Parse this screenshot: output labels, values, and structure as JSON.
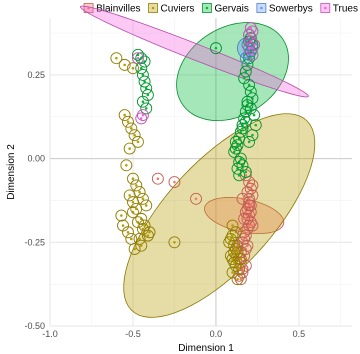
{
  "chart_data": {
    "type": "scatter",
    "xlabel": "Dimension 1",
    "ylabel": "Dimension 2",
    "xlim": [
      -1.0,
      0.82
    ],
    "ylim": [
      -0.5,
      0.42
    ],
    "x_ticks": [
      -1.0,
      -0.5,
      0.0,
      0.5
    ],
    "y_ticks": [
      -0.5,
      -0.25,
      0.0,
      0.25
    ],
    "x_tick_labels": [
      "-1.0",
      "-0.5",
      "0.0",
      "0.5"
    ],
    "y_tick_labels": [
      "-0.50",
      "-0.25",
      "0.00",
      "0.25"
    ],
    "grid": true,
    "legend_position": "top",
    "series": [
      {
        "name": "Blainvilles",
        "color": "#F8766D",
        "ellipse": {
          "cx": 0.17,
          "cy": -0.17,
          "rx": 0.05,
          "ry": 0.24,
          "angle_deg": -85
        },
        "x": [
          -0.35,
          -0.25,
          -0.12,
          0.18,
          0.2,
          0.21,
          0.22,
          0.2,
          0.19,
          0.2,
          0.21,
          0.19,
          0.18,
          0.22,
          0.21,
          0.2,
          0.19,
          0.17,
          0.16,
          0.18,
          0.17,
          0.15,
          0.16,
          0.14,
          0.15,
          0.13,
          0.14,
          0.17,
          0.19,
          0.2,
          0.22,
          0.18,
          0.16,
          0.15,
          0.21,
          0.2,
          0.18,
          0.17,
          0.16,
          0.19
        ],
        "y": [
          -0.06,
          -0.07,
          -0.12,
          -0.05,
          -0.07,
          -0.09,
          -0.11,
          -0.13,
          -0.15,
          -0.17,
          -0.19,
          -0.21,
          -0.23,
          -0.2,
          -0.16,
          -0.14,
          -0.18,
          -0.22,
          -0.25,
          -0.27,
          -0.29,
          -0.31,
          -0.33,
          -0.35,
          -0.28,
          -0.26,
          -0.3,
          -0.24,
          -0.1,
          -0.12,
          -0.08,
          -0.32,
          -0.34,
          -0.36,
          -0.14,
          -0.2,
          -0.16,
          -0.18,
          -0.12,
          -0.26
        ]
      },
      {
        "name": "Cuviers",
        "color": "#B79F00",
        "ellipse": {
          "cx": 0.02,
          "cy": -0.17,
          "rx": 0.62,
          "ry": 0.2,
          "angle_deg": -23
        },
        "x": [
          -0.6,
          -0.55,
          -0.5,
          -0.55,
          -0.53,
          -0.51,
          -0.49,
          -0.47,
          -0.52,
          -0.54,
          -0.5,
          -0.48,
          -0.46,
          -0.44,
          -0.42,
          -0.5,
          -0.45,
          -0.43,
          -0.4,
          -0.46,
          -0.48,
          -0.5,
          -0.52,
          -0.47,
          -0.44,
          -0.56,
          -0.53,
          -0.51,
          -0.45,
          -0.41,
          -0.25,
          -0.57,
          -0.49,
          0.1,
          0.12,
          0.09,
          0.11,
          0.13,
          0.1,
          0.12,
          0.14,
          0.11,
          0.09,
          0.12,
          0.1,
          0.13,
          0.08,
          0.15,
          0.11,
          0.1
        ],
        "y": [
          0.3,
          0.28,
          0.27,
          0.13,
          0.11,
          0.09,
          0.07,
          0.05,
          0.03,
          -0.02,
          -0.06,
          -0.08,
          -0.1,
          -0.12,
          -0.14,
          -0.16,
          -0.18,
          -0.2,
          -0.22,
          -0.24,
          -0.15,
          -0.13,
          -0.11,
          -0.19,
          -0.21,
          -0.2,
          -0.22,
          -0.24,
          -0.26,
          -0.23,
          -0.25,
          -0.17,
          -0.27,
          -0.2,
          -0.22,
          -0.24,
          -0.26,
          -0.28,
          -0.3,
          -0.32,
          -0.33,
          -0.31,
          -0.29,
          -0.27,
          -0.34,
          -0.36,
          -0.25,
          -0.3,
          -0.28,
          -0.23
        ]
      },
      {
        "name": "Gervais",
        "color": "#00BA38",
        "ellipse": {
          "cx": 0.1,
          "cy": 0.26,
          "rx": 0.34,
          "ry": 0.14,
          "angle_deg": -8
        },
        "x": [
          -0.43,
          -0.45,
          -0.44,
          -0.43,
          -0.42,
          -0.41,
          -0.44,
          -0.42,
          -0.47,
          -0.45,
          0.0,
          0.21,
          0.2,
          0.22,
          0.21,
          0.2,
          0.19,
          0.18,
          0.17,
          0.2,
          0.21,
          0.22,
          0.19,
          0.18,
          0.17,
          0.16,
          0.15,
          0.14,
          0.13,
          0.12,
          0.11,
          0.14,
          0.16,
          0.18,
          0.2,
          0.22,
          0.24,
          0.23,
          0.21,
          0.19,
          0.15,
          0.13,
          0.12,
          0.16,
          0.18,
          0.14
        ],
        "y": [
          0.29,
          0.27,
          0.25,
          0.23,
          0.21,
          0.19,
          0.17,
          0.15,
          0.31,
          0.3,
          0.33,
          0.36,
          0.35,
          0.34,
          0.32,
          0.3,
          0.28,
          0.26,
          0.24,
          0.22,
          0.2,
          0.18,
          0.16,
          0.14,
          0.12,
          0.1,
          0.08,
          0.06,
          0.04,
          0.03,
          0.02,
          -0.01,
          -0.02,
          -0.04,
          0.05,
          0.07,
          0.1,
          0.13,
          0.15,
          0.17,
          0.0,
          -0.03,
          0.05,
          0.09,
          0.11,
          -0.05
        ]
      },
      {
        "name": "Sowerbys",
        "color": "#619CFF",
        "ellipse": {
          "cx": 0.18,
          "cy": 0.33,
          "rx": 0.05,
          "ry": 0.03,
          "angle_deg": 0
        },
        "x": [
          0.2,
          0.21,
          0.19,
          0.22,
          0.2,
          0.18
        ],
        "y": [
          0.37,
          0.35,
          0.34,
          0.33,
          0.31,
          0.3
        ]
      },
      {
        "name": "Trues",
        "color": "#F564E3",
        "ellipse": {
          "cx": -0.13,
          "cy": 0.32,
          "rx": 0.7,
          "ry": 0.025,
          "angle_deg": 11
        },
        "x": [
          -0.45,
          -0.44,
          -0.47,
          0.21,
          0.22,
          0.2,
          0.21,
          0.23,
          0.2,
          0.22
        ],
        "y": [
          0.12,
          0.13,
          0.3,
          0.39,
          0.38,
          0.37,
          0.35,
          0.34,
          0.33,
          0.31
        ]
      }
    ]
  }
}
